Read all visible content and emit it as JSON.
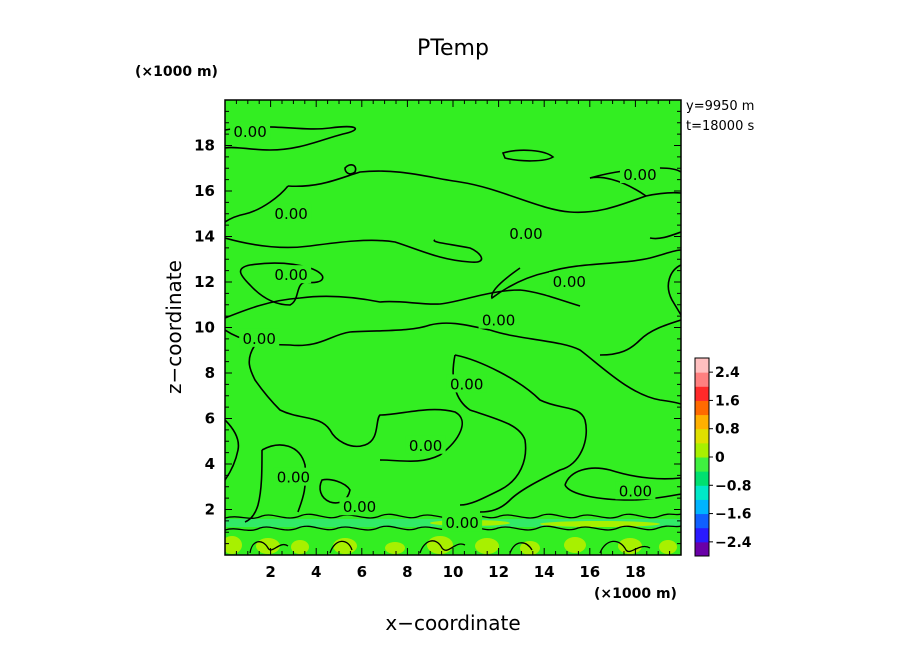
{
  "chart_data": {
    "type": "heatmap",
    "title": "PTemp",
    "xlabel": "x−coordinate",
    "ylabel": "z−coordinate",
    "x_unit": "(×1000 m)",
    "y_unit": "(×1000 m)",
    "xlim": [
      0,
      20
    ],
    "ylim": [
      0,
      20
    ],
    "xticks": [
      "2",
      "4",
      "6",
      "8",
      "10",
      "12",
      "14",
      "16",
      "18"
    ],
    "yticks": [
      "2",
      "4",
      "6",
      "8",
      "10",
      "12",
      "14",
      "16",
      "18"
    ],
    "annotations": [
      "y=9950  m",
      "t=18000  s"
    ],
    "contour_labels": [
      {
        "text": "0.00",
        "x": 1.1,
        "z": 18.6
      },
      {
        "text": "0.00",
        "x": 2.9,
        "z": 15.0
      },
      {
        "text": "0.00",
        "x": 13.2,
        "z": 14.1
      },
      {
        "text": "0.00",
        "x": 18.2,
        "z": 16.7
      },
      {
        "text": "0.00",
        "x": 2.9,
        "z": 12.3
      },
      {
        "text": "0.00",
        "x": 15.1,
        "z": 12.0
      },
      {
        "text": "0.00",
        "x": 12.0,
        "z": 10.3
      },
      {
        "text": "0.00",
        "x": 1.5,
        "z": 9.5
      },
      {
        "text": "0.00",
        "x": 10.6,
        "z": 7.5
      },
      {
        "text": "0.00",
        "x": 8.8,
        "z": 4.8
      },
      {
        "text": "0.00",
        "x": 3.0,
        "z": 3.4
      },
      {
        "text": "0.00",
        "x": 5.9,
        "z": 2.1
      },
      {
        "text": "0.00",
        "x": 10.4,
        "z": 1.4
      },
      {
        "text": "0.00",
        "x": 18.0,
        "z": 2.8
      }
    ],
    "colorbar": {
      "levels": [
        "2.4",
        "1.6",
        "0.8",
        "0",
        "−0.8",
        "−1.6",
        "−2.4"
      ],
      "level_values": [
        2.4,
        1.6,
        0.8,
        0,
        -0.8,
        -1.6,
        -2.4
      ],
      "range": [
        -2.8,
        2.8
      ],
      "colors": [
        "#6a00a8",
        "#2a1aff",
        "#1060ff",
        "#00b4ff",
        "#00e8c8",
        "#00e070",
        "#3ff040",
        "#a8f000",
        "#e0e000",
        "#ffb000",
        "#ff6a00",
        "#ff2a2a",
        "#ff8080",
        "#ffc0c0"
      ]
    },
    "dominant_color": "#33ee22",
    "grid": false
  }
}
